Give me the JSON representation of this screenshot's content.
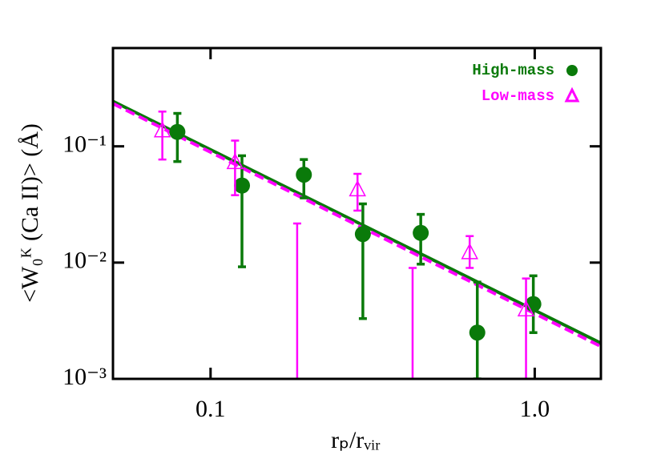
{
  "chart_data": {
    "type": "scatter",
    "x_label": "rₚ/rᵥᵢᵣ",
    "y_label": "<W₀ᴷ (Ca II)> (Å)",
    "xlog": true,
    "ylog": true,
    "xlim": [
      0.05,
      1.6
    ],
    "ylim": [
      0.001,
      0.7
    ],
    "xticks": [
      0.1,
      {
        "value": 1,
        "label": "1.0"
      }
    ],
    "yticks": [
      {
        "value": 0.1,
        "label": "10⁻¹"
      },
      {
        "value": 0.01,
        "label": "10⁻²"
      },
      {
        "value": 0.001,
        "label": "10⁻³"
      }
    ],
    "legend": "upper right",
    "series": [
      {
        "name": "High-mass",
        "color": "#0a7a0a",
        "marker": "circle",
        "x": [
          0.079,
          0.125,
          0.194,
          0.295,
          0.445,
          0.665,
          0.99
        ],
        "values": [
          0.133,
          0.046,
          0.057,
          0.0176,
          0.018,
          0.0025,
          0.0044
        ],
        "upper": [
          0.192,
          0.083,
          0.077,
          0.032,
          0.026,
          0.0068,
          0.0077
        ],
        "lower": [
          0.074,
          0.0092,
          0.036,
          0.0033,
          0.0097,
          0.001,
          0.0025
        ]
      },
      {
        "name": "Low-mass",
        "color": "#ff00ff",
        "marker": "triangle",
        "x": [
          0.071,
          0.119,
          0.185,
          0.284,
          0.42,
          0.63,
          0.94
        ],
        "values": [
          0.135,
          0.072,
          null,
          0.042,
          null,
          0.0121,
          0.0039
        ],
        "upper": [
          0.199,
          0.112,
          0.0217,
          0.058,
          0.009,
          0.0169,
          0.0073
        ],
        "lower": [
          0.077,
          0.038,
          0.001,
          0.028,
          0.001,
          0.009,
          0.001
        ]
      }
    ],
    "fits": [
      {
        "color": "#0a7a0a",
        "dash": false,
        "x": [
          0.05,
          1.6
        ],
        "values": [
          0.244,
          0.00203
        ]
      },
      {
        "color": "#ff00ff",
        "dash": true,
        "x": [
          0.05,
          1.6
        ],
        "values": [
          0.233,
          0.0019
        ]
      }
    ]
  }
}
